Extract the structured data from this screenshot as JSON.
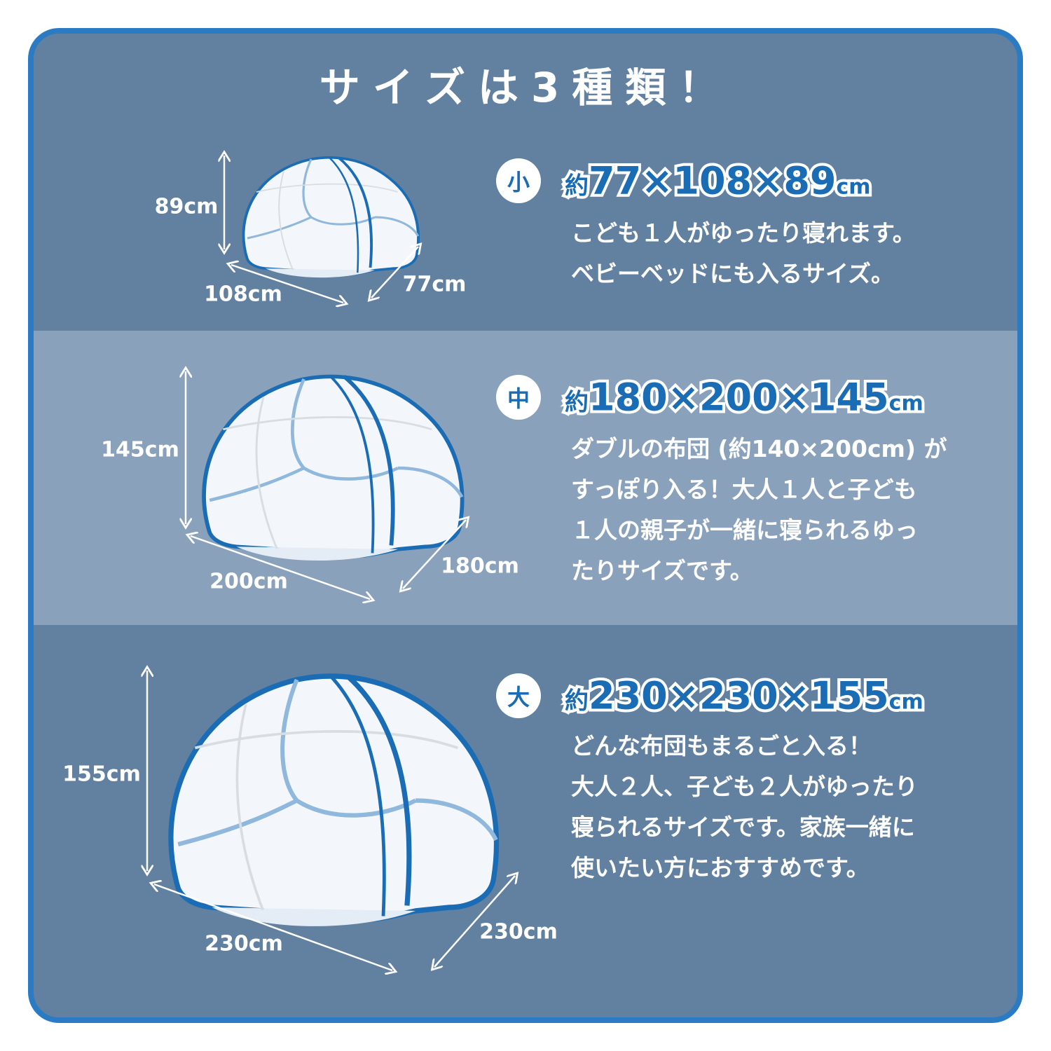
{
  "title": "サイズは3種類！",
  "colors": {
    "frame": "#2b7bc4",
    "band_dark": "#62809f",
    "band_light": "#8aa1bb",
    "heading_text": "#1a6db5",
    "tent_outline": "#1a6db5",
    "tent_seam": "#8fb8dc"
  },
  "sizes": [
    {
      "badge": "小",
      "approx": "約",
      "dimensions": "77×108×89",
      "unit": "cm",
      "description": [
        "こども１人がゆったり寝れます。",
        "ベビーベッドにも入るサイズ。"
      ],
      "height_label": "89cm",
      "width_label": "108cm",
      "depth_label": "77cm"
    },
    {
      "badge": "中",
      "approx": "約",
      "dimensions": "180×200×145",
      "unit": "cm",
      "description": [
        "ダブルの布団 (約140×200cm) が",
        "すっぽり入る！大人１人と子ども",
        "１人の親子が一緒に寝られるゆっ",
        "たりサイズです。"
      ],
      "height_label": "145cm",
      "width_label": "200cm",
      "depth_label": "180cm"
    },
    {
      "badge": "大",
      "approx": "約",
      "dimensions": "230×230×155",
      "unit": "cm",
      "description": [
        "どんな布団もまるごと入る！",
        "大人２人、子ども２人がゆったり",
        "寝られるサイズです。家族一緒に",
        "使いたい方におすすめです。"
      ],
      "height_label": "155cm",
      "width_label": "230cm",
      "depth_label": "230cm"
    }
  ]
}
